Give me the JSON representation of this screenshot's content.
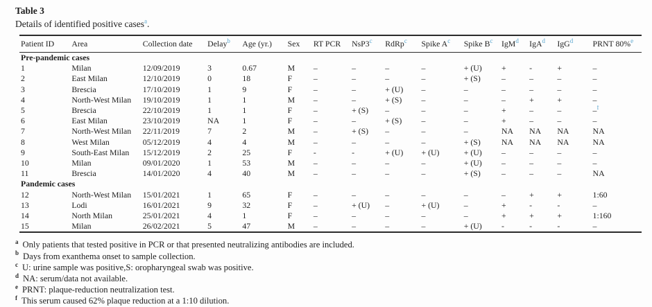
{
  "colors": {
    "accent_footnote_link": "#5aa7d0",
    "text": "#1e1e1e",
    "rule": "#2b2b2b"
  },
  "table": {
    "title": "Table 3",
    "subtitle": "Details of identified positive cases",
    "subtitle_sup": "a",
    "subtitle_period": ".",
    "columns": [
      {
        "label": "Patient ID",
        "sup": ""
      },
      {
        "label": "Area",
        "sup": ""
      },
      {
        "label": "Collection date",
        "sup": ""
      },
      {
        "label": "Delay",
        "sup": "b"
      },
      {
        "label": "Age (yr.)",
        "sup": ""
      },
      {
        "label": "Sex",
        "sup": ""
      },
      {
        "label": "RT PCR",
        "sup": ""
      },
      {
        "label": "NsP3",
        "sup": "c"
      },
      {
        "label": "RdRp",
        "sup": "c"
      },
      {
        "label": "Spike A",
        "sup": "c"
      },
      {
        "label": "Spike B",
        "sup": "c"
      },
      {
        "label": "IgM",
        "sup": "d"
      },
      {
        "label": "IgA",
        "sup": "d"
      },
      {
        "label": "IgG",
        "sup": "d"
      },
      {
        "label": "PRNT 80%",
        "sup": "e"
      }
    ],
    "sections": [
      {
        "label": "Pre-pandemic cases",
        "rows": [
          [
            "1",
            "Milan",
            "12/09/2019",
            "3",
            "0.67",
            "M",
            "–",
            "–",
            "–",
            "–",
            "+ (U)",
            "+",
            "-",
            "+",
            "–"
          ],
          [
            "2",
            "East Milan",
            "12/10/2019",
            "0",
            "18",
            "F",
            "–",
            "–",
            "–",
            "–",
            "+ (S)",
            "–",
            "–",
            "–",
            "–"
          ],
          [
            "3",
            "Brescia",
            "17/10/2019",
            "1",
            "9",
            "F",
            "–",
            "–",
            "+ (U)",
            "–",
            "–",
            "–",
            "–",
            "–",
            "–"
          ],
          [
            "4",
            "North-West Milan",
            "19/10/2019",
            "1",
            "1",
            "M",
            "–",
            "–",
            "+ (S)",
            "–",
            "–",
            "–",
            "+",
            "+",
            "–"
          ],
          [
            "5",
            "Brescia",
            "22/10/2019",
            "1",
            "1",
            "F",
            "–",
            "+ (S)",
            "–",
            "–",
            "–",
            "+",
            "–",
            "–",
            "–^f"
          ],
          [
            "6",
            "East Milan",
            "23/10/2019",
            "NA",
            "1",
            "F",
            "–",
            "–",
            "+ (S)",
            "–",
            "–",
            "+",
            "–",
            "–",
            "–"
          ],
          [
            "7",
            "North-West Milan",
            "22/11/2019",
            "7",
            "2",
            "M",
            "–",
            "+ (S)",
            "–",
            "–",
            "–",
            "NA",
            "NA",
            "NA",
            "NA"
          ],
          [
            "8",
            "West Milan",
            "05/12/2019",
            "4",
            "4",
            "M",
            "–",
            "–",
            "–",
            "–",
            "+ (S)",
            "NA",
            "NA",
            "NA",
            "NA"
          ],
          [
            "9",
            "South-East Milan",
            "15/12/2019",
            "2",
            "25",
            "F",
            "-",
            "-",
            "+ (U)",
            "+ (U)",
            "+ (U)",
            "–",
            "–",
            "–",
            "–"
          ],
          [
            "10",
            "Milan",
            "09/01/2020",
            "1",
            "53",
            "M",
            "–",
            "–",
            "–",
            "–",
            "+ (U)",
            "–",
            "–",
            "–",
            "–"
          ],
          [
            "11",
            "Brescia",
            "14/01/2020",
            "4",
            "40",
            "M",
            "–",
            "–",
            "–",
            "–",
            "+ (S)",
            "–",
            "–",
            "–",
            "NA"
          ]
        ]
      },
      {
        "label": "Pandemic cases",
        "rows": [
          [
            "12",
            "North-West Milan",
            "15/01/2021",
            "1",
            "65",
            "F",
            "–",
            "–",
            "–",
            "–",
            "–",
            "–",
            "+",
            "+",
            "1:60"
          ],
          [
            "13",
            "Lodi",
            "16/01/2021",
            "9",
            "32",
            "F",
            "–",
            "+ (U)",
            "–",
            "+ (U)",
            "–",
            "+",
            "-",
            "-",
            "–"
          ],
          [
            "14",
            "North Milan",
            "25/01/2021",
            "4",
            "1",
            "F",
            "–",
            "–",
            "–",
            "–",
            "–",
            "+",
            "+",
            "+",
            "1:160"
          ],
          [
            "15",
            "Milan",
            "26/02/2021",
            "5",
            "47",
            "M",
            "–",
            "–",
            "–",
            "–",
            "+ (U)",
            "-",
            "-",
            "-",
            "–"
          ]
        ]
      }
    ],
    "footnotes": [
      {
        "marker": "a",
        "text": "Only patients that tested positive in PCR or that presented neutralizing antibodies are included."
      },
      {
        "marker": "b",
        "text": "Days from exanthema onset to sample collection."
      },
      {
        "marker": "c",
        "text": "U: urine sample was positive,S: oropharyngeal swab was positive."
      },
      {
        "marker": "d",
        "text": "NA: serum/data not available."
      },
      {
        "marker": "e",
        "text": "PRNT: plaque-reduction neutralization test."
      },
      {
        "marker": "f",
        "text": "This serum caused 62% plaque reduction at a 1:10 dilution."
      }
    ]
  }
}
